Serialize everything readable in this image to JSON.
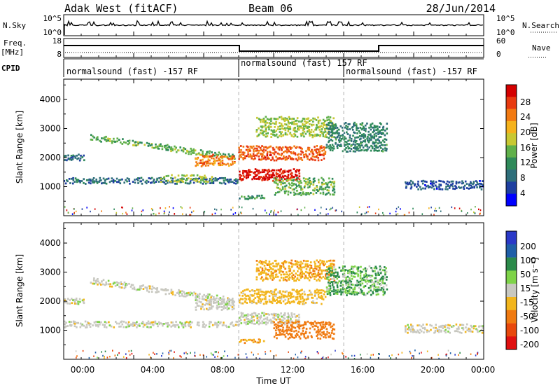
{
  "header": {
    "title": "Adak West (fitACF)",
    "beam": "Beam 06",
    "date": "28/Jun/2014"
  },
  "noise_panel": {
    "left_label": "N.Sky",
    "right_label": "N.Search",
    "left_ticks": [
      "10^5",
      "10^0"
    ],
    "right_ticks": [
      "10^5",
      "10^0"
    ]
  },
  "freq_panel": {
    "left_label_1": "Freq.",
    "left_label_2": "[MHz]",
    "right_label": "Nave",
    "left_ticks": [
      "18",
      "8"
    ],
    "right_ticks": [
      "60",
      "0"
    ]
  },
  "cpid_panel": {
    "label": "CPID",
    "segments": [
      {
        "text": "normalsound (fast) -157 RF",
        "start_hour": 0
      },
      {
        "text": "normalsound (fast) 157 RF",
        "start_hour": 10
      },
      {
        "text": "normalsound (fast) -157 RF",
        "start_hour": 16
      }
    ]
  },
  "x_axis": {
    "ticks": [
      "00:00",
      "04:00",
      "08:00",
      "12:00",
      "16:00",
      "20:00",
      "00:00"
    ],
    "label": "Time UT"
  },
  "power_colorbar": {
    "label": "Power [dB]",
    "ticks": [
      "28",
      "24",
      "20",
      "16",
      "12",
      "8",
      "4"
    ]
  },
  "velocity_colorbar": {
    "label": "Velocity [m s⁻¹]",
    "ticks": [
      "200",
      "100",
      "50",
      "15",
      "-15",
      "-50",
      "-100",
      "-200"
    ]
  },
  "chart_data": [
    {
      "type": "heatmap",
      "name": "power",
      "ylabel": "Slant Range [km]",
      "xlabel": "Time UT",
      "xlim": [
        0,
        24
      ],
      "ylim": [
        0,
        4700
      ],
      "yticks": [
        1000,
        2000,
        3000,
        4000
      ],
      "colorbar": {
        "label": "Power [dB]",
        "range": [
          0,
          32
        ]
      },
      "features": [
        {
          "t0": 0.0,
          "t1": 1.2,
          "r0": 1900,
          "r1": 2100,
          "value": 8
        },
        {
          "t0": 1.5,
          "t1": 9.8,
          "r0": 2600,
          "r1": 2800,
          "r1_end": 2100,
          "value": 14
        },
        {
          "t0": 7.5,
          "t1": 9.8,
          "r0": 2100,
          "r1": 1700,
          "value": 24
        },
        {
          "t0": 0.0,
          "t1": 10.0,
          "r0": 1100,
          "r1": 1300,
          "value": 8
        },
        {
          "t0": 5.5,
          "t1": 8.5,
          "r0": 1150,
          "r1": 1400,
          "value": 16
        },
        {
          "t0": 10.0,
          "t1": 13.5,
          "r0": 1200,
          "r1": 1600,
          "value": 30
        },
        {
          "t0": 10.0,
          "t1": 15.0,
          "r0": 1900,
          "r1": 2400,
          "value": 26
        },
        {
          "t0": 11.0,
          "t1": 15.5,
          "r0": 2700,
          "r1": 3400,
          "value": 16
        },
        {
          "t0": 12.0,
          "t1": 15.5,
          "r0": 700,
          "r1": 1300,
          "value": 14
        },
        {
          "t0": 10.0,
          "t1": 11.5,
          "r0": 550,
          "r1": 700,
          "value": 12
        },
        {
          "t0": 15.0,
          "t1": 18.5,
          "r0": 2200,
          "r1": 3200,
          "value": 10
        },
        {
          "t0": 19.5,
          "t1": 24.0,
          "r0": 1200,
          "r1": 900,
          "value": 6
        }
      ]
    },
    {
      "type": "heatmap",
      "name": "velocity",
      "ylabel": "Slant Range [km]",
      "xlabel": "Time UT",
      "xlim": [
        0,
        24
      ],
      "ylim": [
        0,
        4700
      ],
      "yticks": [
        1000,
        2000,
        3000,
        4000
      ],
      "colorbar": {
        "label": "Velocity [m s⁻¹]",
        "range": [
          -200,
          200
        ]
      },
      "features": [
        {
          "t0": 0.0,
          "t1": 1.2,
          "r0": 1900,
          "r1": 2100,
          "value": 0
        },
        {
          "t0": 1.5,
          "t1": 9.8,
          "r0": 2600,
          "r1": 2800,
          "r1_end": 2100,
          "value": 0
        },
        {
          "t0": 7.5,
          "t1": 9.8,
          "r0": 2100,
          "r1": 1700,
          "value": 0
        },
        {
          "t0": 0.0,
          "t1": 10.0,
          "r0": 1100,
          "r1": 1300,
          "value": 0
        },
        {
          "t0": 10.0,
          "t1": 13.5,
          "r0": 1200,
          "r1": 1600,
          "value": 0
        },
        {
          "t0": 10.0,
          "t1": 15.0,
          "r0": 1900,
          "r1": 2400,
          "value": -30
        },
        {
          "t0": 11.0,
          "t1": 15.5,
          "r0": 2700,
          "r1": 3400,
          "value": -40
        },
        {
          "t0": 12.0,
          "t1": 15.5,
          "r0": 700,
          "r1": 1300,
          "value": -80
        },
        {
          "t0": 10.0,
          "t1": 11.5,
          "r0": 550,
          "r1": 700,
          "value": -40
        },
        {
          "t0": 15.0,
          "t1": 18.5,
          "r0": 2200,
          "r1": 3200,
          "value": 30
        },
        {
          "t0": 19.5,
          "t1": 24.0,
          "r0": 1200,
          "r1": 900,
          "value": 0
        }
      ]
    }
  ]
}
